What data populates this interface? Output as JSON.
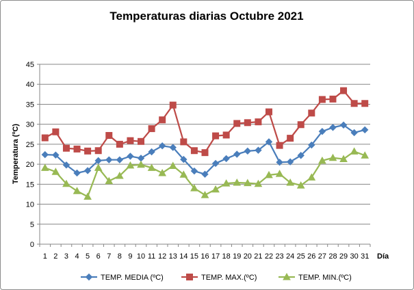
{
  "chart_data": {
    "type": "line",
    "title": "Temperaturas diarias Octubre 2021",
    "xlabel": "Día",
    "ylabel": "Temperatura (ºC)",
    "ylim": [
      0,
      45
    ],
    "yticks": [
      0,
      5,
      10,
      15,
      20,
      25,
      30,
      35,
      40,
      45
    ],
    "grid": true,
    "legend_position": "bottom",
    "categories": [
      "1",
      "2",
      "3",
      "4",
      "5",
      "6",
      "7",
      "8",
      "9",
      "10",
      "11",
      "12",
      "13",
      "14",
      "15",
      "16",
      "17",
      "18",
      "19",
      "20",
      "21",
      "22",
      "23",
      "24",
      "25",
      "26",
      "27",
      "28",
      "29",
      "30",
      "31"
    ],
    "series": [
      {
        "name": "TEMP. MEDIA (ºC)",
        "color": "#4a7ebb",
        "marker": "diamond",
        "values": [
          22.4,
          22.3,
          19.8,
          17.8,
          18.4,
          20.9,
          21.1,
          21.1,
          22.0,
          21.5,
          23.1,
          24.6,
          24.2,
          21.2,
          18.3,
          17.5,
          20.2,
          21.4,
          22.5,
          23.3,
          23.5,
          25.6,
          20.5,
          20.6,
          22.2,
          24.8,
          28.2,
          29.2,
          29.8,
          27.9,
          28.6
        ]
      },
      {
        "name": "TEMP. MAX.(ºC)",
        "color": "#be4b48",
        "marker": "square",
        "values": [
          26.6,
          28.1,
          24.0,
          23.8,
          23.3,
          23.4,
          27.2,
          25.0,
          25.9,
          25.7,
          28.9,
          31.1,
          34.8,
          25.6,
          23.4,
          22.9,
          27.1,
          27.3,
          30.2,
          30.4,
          30.6,
          33.1,
          24.7,
          26.5,
          29.9,
          32.8,
          36.2,
          36.3,
          38.4,
          35.2,
          35.2
        ]
      },
      {
        "name": "TEMP. MIN.(ºC)",
        "color": "#98b954",
        "marker": "triangle",
        "values": [
          19.1,
          18.1,
          15.1,
          13.3,
          11.9,
          19.1,
          15.8,
          17.1,
          19.7,
          19.9,
          19.1,
          17.8,
          19.6,
          17.4,
          14.0,
          12.3,
          13.7,
          15.2,
          15.4,
          15.3,
          15.1,
          17.3,
          17.6,
          15.4,
          14.7,
          16.7,
          20.9,
          21.6,
          21.3,
          23.2,
          22.2
        ]
      }
    ]
  }
}
